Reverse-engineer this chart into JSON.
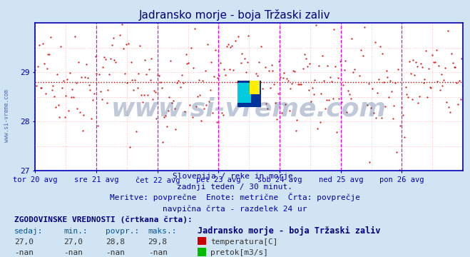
{
  "title": "Jadransko morje - boja Tržaski zaliv",
  "title_color": "#000080",
  "bg_color": "#d0e4f4",
  "plot_bg_color": "#ffffff",
  "x_labels": [
    "tor 20 avg",
    "sre 21 avg",
    "čet 22 avg",
    "pet 23 avg",
    "sob 24 avg",
    "ned 25 avg",
    "pon 26 avg"
  ],
  "y_min": 27.0,
  "y_max": 30.0,
  "y_ticks": [
    27,
    28,
    29
  ],
  "avg_line_y": 28.8,
  "avg_line_color": "#dd0000",
  "grid_color": "#ffbbbb",
  "vline_color": "#ee00ee",
  "axis_color": "#0000bb",
  "tick_color": "#0000bb",
  "data_color": "#cc0000",
  "watermark": "www.si-vreme.com",
  "watermark_color": "#1e3f7a",
  "sub_text1": "Slovenija / reke in morje.",
  "sub_text2": "zadnji teden / 30 minut.",
  "sub_text3": "Meritve: povprečne  Enote: metrične  Črta: povprečje",
  "sub_text4": "navpična črta - razdelek 24 ur",
  "sub_text_color": "#0000aa",
  "table_header": "ZGODOVINSKE VREDNOSTI (črtkana črta):",
  "table_col1": "sedaj:",
  "table_col2": "min.:",
  "table_col3": "povpr.:",
  "table_col4": "maks.:",
  "table_header2": "Jadransko morje - boja Tržaski zaliv",
  "val_sedaj": "27,0",
  "val_min": "27,0",
  "val_povpr": "28,8",
  "val_maks": "29,8",
  "label1": "temperatura[C]",
  "label2": "pretok[m3/s]",
  "label1_color": "#cc0000",
  "label2_color": "#00bb00",
  "n_days": 7,
  "points_per_day": 48,
  "seed": 42
}
